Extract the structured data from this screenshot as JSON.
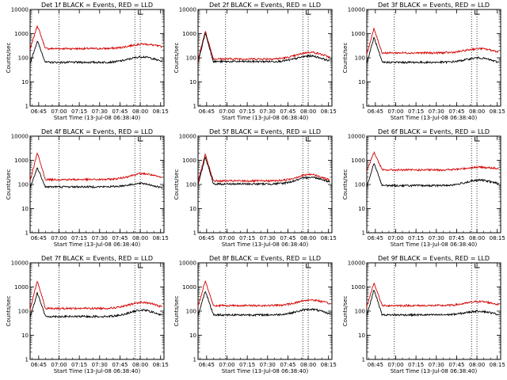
{
  "chart_data": [
    {
      "type": "line",
      "title": "Det 1f BLACK = Events, RED = LLD",
      "xlabel": "Start Time (13-Jul-08 06:38:40)",
      "ylabel": "Counts/sec",
      "yscale": "log",
      "ylim": [
        1,
        10000
      ],
      "x_ticks": [
        "06:45",
        "07:00",
        "07:15",
        "07:30",
        "07:45",
        "08:00",
        "08:15"
      ],
      "y_ticks": [
        "1",
        "10",
        "100",
        "1000",
        "10000"
      ],
      "vlines": [
        "07:00",
        "07:56",
        "08:00"
      ],
      "marker": "08:00",
      "series": [
        {
          "color": "#000000",
          "peak": 500,
          "base": 65,
          "bump": 110,
          "bump_at": "08:02",
          "end": 55
        },
        {
          "color": "#d40000",
          "peak": 2200,
          "base": 240,
          "bump": 370,
          "bump_at": "08:02",
          "end": 250
        }
      ]
    },
    {
      "type": "line",
      "title": "Det 2f BLACK = Events, RED = LLD",
      "xlabel": "Start Time (13-Jul-08 06:38:40)",
      "ylabel": "Counts/sec",
      "yscale": "log",
      "ylim": [
        1,
        10000
      ],
      "x_ticks": [
        "06:45",
        "07:00",
        "07:15",
        "07:30",
        "07:45",
        "08:00",
        "08:15"
      ],
      "y_ticks": [
        "1",
        "10",
        "100",
        "1000",
        "10000"
      ],
      "vlines": [
        "06:59",
        "07:56",
        "08:00"
      ],
      "marker": "08:00",
      "series": [
        {
          "color": "#000000",
          "peak": 1100,
          "base": 70,
          "bump": 120,
          "bump_at": "08:02",
          "end": 55
        },
        {
          "color": "#d40000",
          "peak": 1300,
          "base": 90,
          "bump": 170,
          "bump_at": "08:02",
          "end": 80
        }
      ]
    },
    {
      "type": "line",
      "title": "Det 3f BLACK = Events, RED = LLD",
      "xlabel": "Start Time (13-Jul-08 06:38:40)",
      "ylabel": "Counts/sec",
      "yscale": "log",
      "ylim": [
        1,
        10000
      ],
      "x_ticks": [
        "06:45",
        "07:00",
        "07:15",
        "07:30",
        "07:45",
        "08:00",
        "08:15"
      ],
      "y_ticks": [
        "1",
        "10",
        "100",
        "1000",
        "10000"
      ],
      "vlines": [
        "06:59",
        "07:56",
        "08:00"
      ],
      "marker": "08:00",
      "series": [
        {
          "color": "#000000",
          "peak": 700,
          "base": 65,
          "bump": 100,
          "bump_at": "08:02",
          "end": 50
        },
        {
          "color": "#d40000",
          "peak": 1600,
          "base": 160,
          "bump": 240,
          "bump_at": "08:02",
          "end": 150
        }
      ]
    },
    {
      "type": "line",
      "title": "Det 4f BLACK = Events, RED = LLD",
      "xlabel": "Start Time (13-Jul-08 06:38:40)",
      "ylabel": "Counts/sec",
      "yscale": "log",
      "ylim": [
        1,
        10000
      ],
      "x_ticks": [
        "06:45",
        "07:00",
        "07:15",
        "07:30",
        "07:45",
        "08:00",
        "08:15"
      ],
      "y_ticks": [
        "1",
        "10",
        "100",
        "1000",
        "10000"
      ],
      "vlines": [
        "07:00",
        "07:56",
        "08:00"
      ],
      "marker": "08:00",
      "series": [
        {
          "color": "#000000",
          "peak": 500,
          "base": 80,
          "bump": 110,
          "bump_at": "08:02",
          "end": 55
        },
        {
          "color": "#d40000",
          "peak": 2000,
          "base": 160,
          "bump": 280,
          "bump_at": "08:02",
          "end": 150
        }
      ]
    },
    {
      "type": "line",
      "title": "Det 5f BLACK = Events, RED = LLD",
      "xlabel": "Start Time (13-Jul-08 06:38:40)",
      "ylabel": "Counts/sec",
      "yscale": "log",
      "ylim": [
        1,
        10000
      ],
      "x_ticks": [
        "06:45",
        "07:00",
        "07:15",
        "07:30",
        "07:45",
        "08:00",
        "08:15"
      ],
      "y_ticks": [
        "1",
        "10",
        "100",
        "1000",
        "10000"
      ],
      "vlines": [
        "06:59",
        "07:56",
        "08:00"
      ],
      "marker": "08:00",
      "series": [
        {
          "color": "#000000",
          "peak": 1400,
          "base": 105,
          "bump": 200,
          "bump_at": "08:02",
          "end": 100
        },
        {
          "color": "#d40000",
          "peak": 1800,
          "base": 140,
          "bump": 260,
          "bump_at": "08:02",
          "end": 110
        }
      ]
    },
    {
      "type": "line",
      "title": "Det 6f BLACK = Events, RED = LLD",
      "xlabel": "Start Time (13-Jul-08 06:38:40)",
      "ylabel": "Counts/sec",
      "yscale": "log",
      "ylim": [
        1,
        10000
      ],
      "x_ticks": [
        "06:45",
        "07:00",
        "07:15",
        "07:30",
        "07:45",
        "08:00",
        "08:15"
      ],
      "y_ticks": [
        "1",
        "10",
        "100",
        "1000",
        "10000"
      ],
      "vlines": [
        "06:59",
        "07:56",
        "08:00"
      ],
      "marker": "08:00",
      "series": [
        {
          "color": "#000000",
          "peak": 800,
          "base": 90,
          "bump": 150,
          "bump_at": "08:02",
          "end": 90
        },
        {
          "color": "#d40000",
          "peak": 2200,
          "base": 400,
          "bump": 520,
          "bump_at": "08:02",
          "end": 400
        }
      ]
    },
    {
      "type": "line",
      "title": "Det 7f BLACK = Events, RED = LLD",
      "xlabel": "Start Time (13-Jul-08 06:38:40)",
      "ylabel": "Counts/sec",
      "yscale": "log",
      "ylim": [
        1,
        10000
      ],
      "x_ticks": [
        "06:45",
        "07:00",
        "07:15",
        "07:30",
        "07:45",
        "08:00",
        "08:15"
      ],
      "y_ticks": [
        "1",
        "10",
        "100",
        "1000",
        "10000"
      ],
      "vlines": [
        "07:00",
        "07:56",
        "08:00"
      ],
      "marker": "08:00",
      "series": [
        {
          "color": "#000000",
          "peak": 600,
          "base": 60,
          "bump": 110,
          "bump_at": "08:02",
          "end": 50
        },
        {
          "color": "#d40000",
          "peak": 1800,
          "base": 130,
          "bump": 230,
          "bump_at": "08:02",
          "end": 120
        }
      ]
    },
    {
      "type": "line",
      "title": "Det 8f BLACK = Events, RED = LLD",
      "xlabel": "Start Time (13-Jul-08 06:38:40)",
      "ylabel": "Counts/sec",
      "yscale": "log",
      "ylim": [
        1,
        10000
      ],
      "x_ticks": [
        "06:45",
        "07:00",
        "07:15",
        "07:30",
        "07:45",
        "08:00",
        "08:15"
      ],
      "y_ticks": [
        "1",
        "10",
        "100",
        "1000",
        "10000"
      ],
      "vlines": [
        "06:59",
        "07:56",
        "08:00"
      ],
      "marker": "08:00",
      "series": [
        {
          "color": "#000000",
          "peak": 700,
          "base": 70,
          "bump": 120,
          "bump_at": "08:02",
          "end": 60
        },
        {
          "color": "#d40000",
          "peak": 1800,
          "base": 170,
          "bump": 290,
          "bump_at": "08:02",
          "end": 170
        }
      ]
    },
    {
      "type": "line",
      "title": "Det 9f BLACK = Events, RED = LLD",
      "xlabel": "Start Time (13-Jul-08 06:38:40)",
      "ylabel": "Counts/sec",
      "yscale": "log",
      "ylim": [
        1,
        10000
      ],
      "x_ticks": [
        "06:45",
        "07:00",
        "07:15",
        "07:30",
        "07:45",
        "08:00",
        "08:15"
      ],
      "y_ticks": [
        "1",
        "10",
        "100",
        "1000",
        "10000"
      ],
      "vlines": [
        "06:59",
        "07:56",
        "08:00"
      ],
      "marker": "08:00",
      "series": [
        {
          "color": "#000000",
          "peak": 800,
          "base": 70,
          "bump": 100,
          "bump_at": "08:02",
          "end": 60
        },
        {
          "color": "#d40000",
          "peak": 1500,
          "base": 170,
          "bump": 250,
          "bump_at": "08:02",
          "end": 160
        }
      ]
    }
  ]
}
